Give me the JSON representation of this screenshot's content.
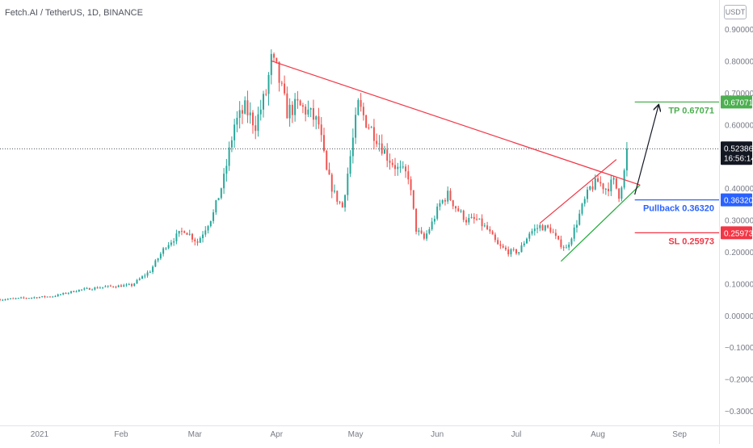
{
  "header": {
    "title": "Fetch.AI / TetherUS, 1D, BINANCE",
    "currency": "USDT"
  },
  "colors": {
    "up": "#26a69a",
    "down": "#ef5350",
    "trend_red": "#f23645",
    "trend_green": "#22ab3a",
    "tp": "#4caf50",
    "pullback": "#2962ff",
    "sl": "#f23645",
    "axis_text": "#787b86"
  },
  "price_badge": {
    "price": "0.52386",
    "countdown": "16:56:14"
  },
  "levels": [
    {
      "name": "tp",
      "label": "TP 0.67071",
      "badge": "0.67071",
      "value": 0.67071
    },
    {
      "name": "pullback",
      "label": "Pullback 0.36320",
      "badge": "0.36320",
      "value": 0.3632
    },
    {
      "name": "sl",
      "label": "SL 0.25973",
      "badge": "0.25973",
      "value": 0.25973
    }
  ],
  "chart_data": {
    "type": "candlestick",
    "title": "Fetch.AI / TetherUS, 1D, BINANCE",
    "ylim": [
      -0.3,
      0.9
    ],
    "y_ticks": [
      {
        "v": 0.9,
        "label": "0.90000"
      },
      {
        "v": 0.8,
        "label": "0.80000"
      },
      {
        "v": 0.7,
        "label": "0.70000"
      },
      {
        "v": 0.6,
        "label": "0.60000"
      },
      {
        "v": 0.4,
        "label": "0.40000"
      },
      {
        "v": 0.3,
        "label": "0.30000"
      },
      {
        "v": 0.2,
        "label": "0.20000"
      },
      {
        "v": 0.1,
        "label": "0.10000"
      },
      {
        "v": 0.0,
        "label": "0.00000"
      },
      {
        "v": -0.1,
        "label": "−0.10000"
      },
      {
        "v": -0.2,
        "label": "−0.20000"
      },
      {
        "v": -0.3,
        "label": "−0.30000"
      }
    ],
    "x_ticks": [
      {
        "day": 0,
        "label": "2021"
      },
      {
        "day": 31,
        "label": "Feb"
      },
      {
        "day": 59,
        "label": "Mar"
      },
      {
        "day": 90,
        "label": "Apr"
      },
      {
        "day": 120,
        "label": "May"
      },
      {
        "day": 151,
        "label": "Jun"
      },
      {
        "day": 181,
        "label": "Jul"
      },
      {
        "day": 212,
        "label": "Aug"
      },
      {
        "day": 243,
        "label": "Sep"
      }
    ],
    "x_range_days": [
      -15,
      258
    ],
    "current_price": 0.52386,
    "anchors": [
      [
        -15,
        0.05
      ],
      [
        -5,
        0.055
      ],
      [
        5,
        0.06
      ],
      [
        15,
        0.08
      ],
      [
        25,
        0.09
      ],
      [
        35,
        0.095
      ],
      [
        42,
        0.14
      ],
      [
        48,
        0.22
      ],
      [
        55,
        0.27
      ],
      [
        60,
        0.23
      ],
      [
        66,
        0.32
      ],
      [
        70,
        0.43
      ],
      [
        74,
        0.6
      ],
      [
        78,
        0.65
      ],
      [
        82,
        0.6
      ],
      [
        86,
        0.7
      ],
      [
        88,
        0.8
      ],
      [
        90,
        0.77
      ],
      [
        94,
        0.64
      ],
      [
        98,
        0.66
      ],
      [
        102,
        0.64
      ],
      [
        106,
        0.6
      ],
      [
        109,
        0.45
      ],
      [
        112,
        0.38
      ],
      [
        115,
        0.34
      ],
      [
        118,
        0.5
      ],
      [
        121,
        0.66
      ],
      [
        124,
        0.61
      ],
      [
        128,
        0.56
      ],
      [
        132,
        0.5
      ],
      [
        136,
        0.46
      ],
      [
        140,
        0.44
      ],
      [
        143,
        0.27
      ],
      [
        146,
        0.24
      ],
      [
        149,
        0.29
      ],
      [
        152,
        0.35
      ],
      [
        155,
        0.38
      ],
      [
        158,
        0.34
      ],
      [
        162,
        0.3
      ],
      [
        166,
        0.3
      ],
      [
        170,
        0.27
      ],
      [
        174,
        0.22
      ],
      [
        178,
        0.2
      ],
      [
        182,
        0.2
      ],
      [
        186,
        0.26
      ],
      [
        190,
        0.28
      ],
      [
        194,
        0.27
      ],
      [
        197,
        0.23
      ],
      [
        200,
        0.21
      ],
      [
        203,
        0.27
      ],
      [
        206,
        0.34
      ],
      [
        209,
        0.4
      ],
      [
        212,
        0.42
      ],
      [
        215,
        0.4
      ],
      [
        218,
        0.42
      ],
      [
        220,
        0.38
      ],
      [
        222,
        0.45
      ],
      [
        223,
        0.52
      ]
    ],
    "trendlines": [
      {
        "name": "descending-resistance",
        "color": "trend_red",
        "points": [
          [
            88,
            0.8
          ],
          [
            228,
            0.41
          ]
        ]
      },
      {
        "name": "channel-upper",
        "color": "trend_red",
        "points": [
          [
            190,
            0.29
          ],
          [
            219,
            0.49
          ]
        ]
      },
      {
        "name": "rising-support",
        "color": "trend_green",
        "points": [
          [
            198,
            0.17
          ],
          [
            228,
            0.41
          ]
        ]
      },
      {
        "name": "target-arrow",
        "color": "arrow",
        "points": [
          [
            226,
            0.38
          ],
          [
            235,
            0.66
          ]
        ]
      }
    ]
  }
}
